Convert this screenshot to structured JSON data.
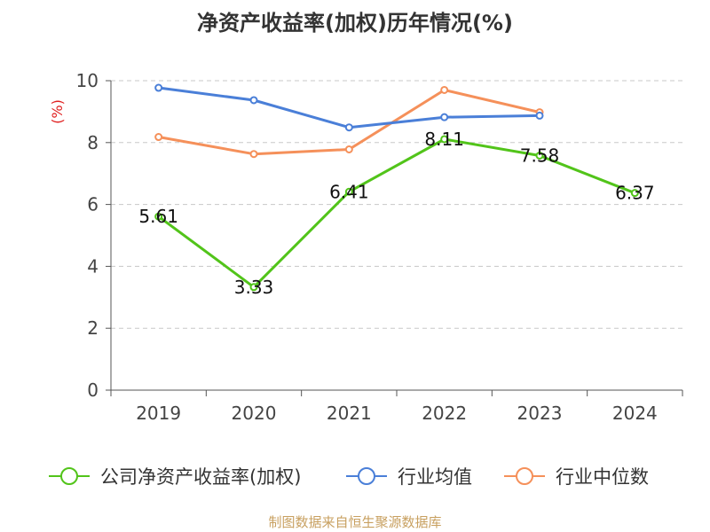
{
  "chart_data": {
    "type": "line",
    "title": "净资产收益率(加权)历年情况(%)",
    "ylabel": "(%)",
    "xlabel": "",
    "categories": [
      "2019",
      "2020",
      "2021",
      "2022",
      "2023",
      "2024"
    ],
    "ylim": [
      0,
      10
    ],
    "yticks": [
      0,
      2,
      4,
      6,
      8,
      10
    ],
    "grid": true,
    "legend_position": "bottom",
    "series": [
      {
        "name": "公司净资产收益率(加权)",
        "color": "#52c41a",
        "values": [
          5.61,
          3.33,
          6.41,
          8.11,
          7.58,
          6.37
        ],
        "labels": [
          "5.61",
          "3.33",
          "6.41",
          "8.11",
          "7.58",
          "6.37"
        ]
      },
      {
        "name": "行业均值",
        "color": "#4a7fd8",
        "values": [
          9.77,
          9.37,
          8.49,
          8.82,
          8.87,
          null
        ]
      },
      {
        "name": "行业中位数",
        "color": "#f5905a",
        "values": [
          8.18,
          7.63,
          7.78,
          9.7,
          8.98,
          null
        ]
      }
    ],
    "source": "制图数据来自恒生聚源数据库"
  }
}
